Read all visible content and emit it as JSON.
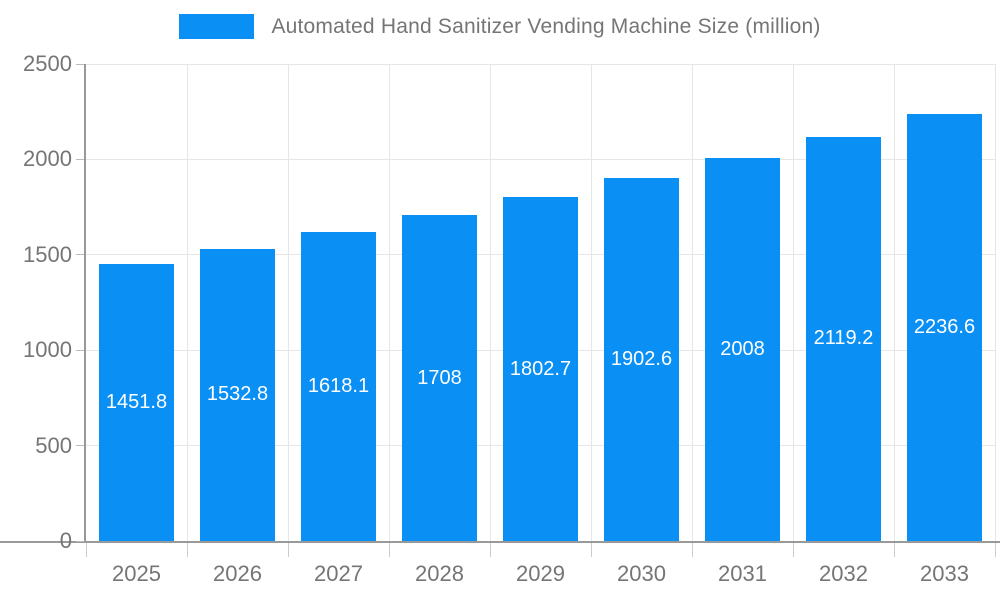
{
  "chart_data": {
    "type": "bar",
    "title": "Automated Hand Sanitizer Vending Machine Size (million)",
    "legend": {
      "label": "Automated Hand Sanitizer Vending Machine Size (million)",
      "position": "top-center"
    },
    "categories": [
      "2025",
      "2026",
      "2027",
      "2028",
      "2029",
      "2030",
      "2031",
      "2032",
      "2033"
    ],
    "values": [
      1451.8,
      1532.8,
      1618.1,
      1708,
      1802.7,
      1902.6,
      2008,
      2119.2,
      2236.6
    ],
    "value_labels": [
      "1451.8",
      "1532.8",
      "1618.1",
      "1708",
      "1802.7",
      "1902.6",
      "2008",
      "2119.2",
      "2236.6"
    ],
    "xlabel": "",
    "ylabel": "",
    "ylim": [
      0,
      2500
    ],
    "yticks": [
      0,
      500,
      1000,
      1500,
      2000,
      2500
    ],
    "grid": true,
    "colors": {
      "bar": "#0a8ff5",
      "axis_line": "#999999",
      "gridline": "#e6e6e6",
      "text": "#757575",
      "bar_label": "#ffffff",
      "background": "#ffffff"
    }
  }
}
